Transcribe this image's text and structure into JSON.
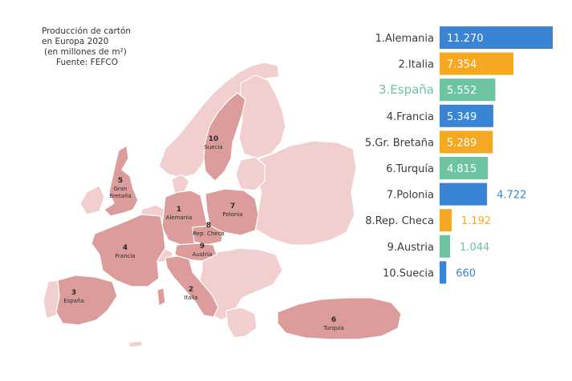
{
  "caption": {
    "line1": "Producción de cartón",
    "line2": "en Europa 2020",
    "line3": "(en millones de m²)",
    "line4": "Fuente: FEFCO"
  },
  "colors": {
    "blue": "#3a84d6",
    "orange": "#f7a823",
    "green": "#6cc4a1",
    "highlight_text": "#6cc4a1",
    "label_text": "#3b3b3b",
    "map_highlight": "#dc9c9c",
    "map_base": "#f2cfcf",
    "map_border": "#ffffff",
    "map_label": "#2a2a2a"
  },
  "map_labels": [
    {
      "rank": "10",
      "name": "Suecia"
    },
    {
      "rank": "5",
      "name": "Gran Bretaña"
    },
    {
      "rank": "1",
      "name": "Alemania"
    },
    {
      "rank": "7",
      "name": "Polonia"
    },
    {
      "rank": "8",
      "name": "Rep. Checa"
    },
    {
      "rank": "9",
      "name": "Austria"
    },
    {
      "rank": "4",
      "name": "Francia"
    },
    {
      "rank": "3",
      "name": "España"
    },
    {
      "rank": "2",
      "name": "Italia"
    },
    {
      "rank": "6",
      "name": "Turquía"
    }
  ],
  "chart_data": {
    "type": "bar",
    "orientation": "horizontal",
    "title": "Producción de cartón en Europa 2020",
    "unit": "(en millones de m²)",
    "source": "Fuente: FEFCO",
    "categories": [
      "1.Alemania",
      "2.Italia",
      "3.España",
      "4.Francia",
      "5.Gr. Bretaña",
      "6.Turquía",
      "7.Polonia",
      "8.Rep. Checa",
      "9.Austria",
      "10.Suecia"
    ],
    "values": [
      11270,
      7354,
      5552,
      5349,
      5289,
      4815,
      4722,
      1192,
      1044,
      660
    ],
    "value_labels": [
      "11.270",
      "7.354",
      "5.552",
      "5.349",
      "5.289",
      "4.815",
      "4.722",
      "1.192",
      "1.044",
      "660"
    ],
    "bar_colors": [
      "blue",
      "orange",
      "green",
      "blue",
      "orange",
      "green",
      "blue",
      "orange",
      "green",
      "blue"
    ],
    "highlighted_category": "3.España",
    "grid": false,
    "legend": "none"
  }
}
